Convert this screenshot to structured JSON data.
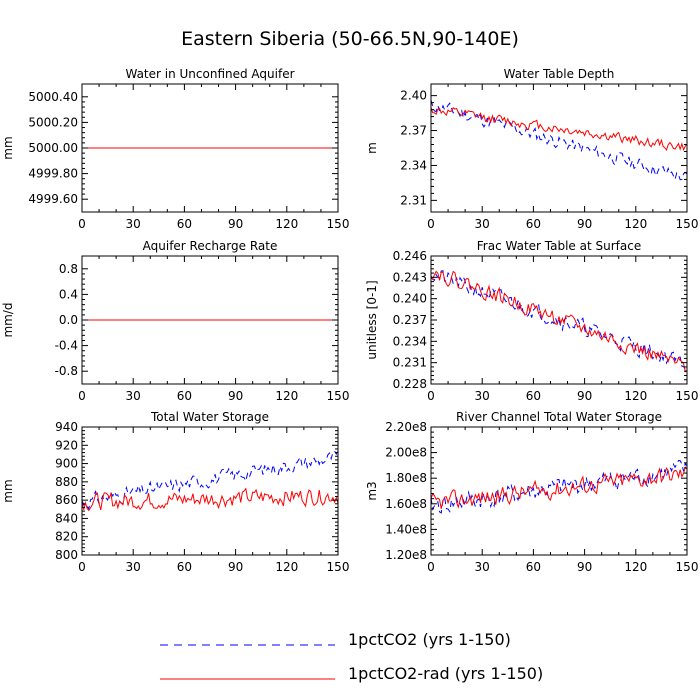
{
  "figure": {
    "title": "Eastern Siberia (50-66.5N,90-140E)"
  },
  "legend": [
    {
      "label": "1pctCO2 (yrs 1-150)",
      "color": "#0000ff",
      "dash": "dashed"
    },
    {
      "label": "1pctCO2-rad (yrs 1-150)",
      "color": "#ff0000",
      "dash": "solid"
    }
  ],
  "chart_data": [
    {
      "type": "line",
      "title": "Water in Unconfined Aquifer",
      "ylabel": "mm",
      "xlim": [
        0,
        150
      ],
      "ylim": [
        4999.5,
        5000.5
      ],
      "xticks": [
        0,
        30,
        60,
        90,
        120,
        150
      ],
      "yticks": [
        4999.6,
        4999.8,
        5000.0,
        5000.2,
        5000.4
      ],
      "ytick_labels": [
        "4999.60",
        "4999.80",
        "5000.00",
        "5000.20",
        "5000.40"
      ],
      "series": [
        {
          "name": "1pctCO2 (yrs 1-150)",
          "pattern": "flat",
          "base": 5000.0,
          "amp": 0,
          "trend": 0,
          "seed": 1
        },
        {
          "name": "1pctCO2-rad (yrs 1-150)",
          "pattern": "flat",
          "base": 5000.0,
          "amp": 0,
          "trend": 0,
          "seed": 2
        }
      ]
    },
    {
      "type": "line",
      "title": "Water Table Depth",
      "ylabel": "m",
      "xlim": [
        0,
        150
      ],
      "ylim": [
        2.3,
        2.41
      ],
      "xticks": [
        0,
        30,
        60,
        90,
        120,
        150
      ],
      "yticks": [
        2.31,
        2.34,
        2.37,
        2.4
      ],
      "ytick_labels": [
        "2.31",
        "2.34",
        "2.37",
        "2.40"
      ],
      "series": [
        {
          "name": "1pctCO2 (yrs 1-150)",
          "pattern": "noise",
          "base": 2.392,
          "amp": 0.008,
          "trend": -0.00042,
          "seed": 11
        },
        {
          "name": "1pctCO2-rad (yrs 1-150)",
          "pattern": "noise",
          "base": 2.388,
          "amp": 0.006,
          "trend": -0.00022,
          "seed": 12
        }
      ]
    },
    {
      "type": "line",
      "title": "Aquifer Recharge Rate",
      "ylabel": "mm/d",
      "xlim": [
        0,
        150
      ],
      "ylim": [
        -1.0,
        1.0
      ],
      "xticks": [
        0,
        30,
        60,
        90,
        120,
        150
      ],
      "yticks": [
        -0.8,
        -0.4,
        0.0,
        0.4,
        0.8
      ],
      "ytick_labels": [
        "-0.8",
        "-0.4",
        "0.0",
        "0.4",
        "0.8"
      ],
      "series": [
        {
          "name": "1pctCO2 (yrs 1-150)",
          "pattern": "flat",
          "base": 0.0,
          "amp": 0,
          "trend": 0,
          "seed": 3
        },
        {
          "name": "1pctCO2-rad (yrs 1-150)",
          "pattern": "flat",
          "base": 0.0,
          "amp": 0,
          "trend": 0,
          "seed": 4
        }
      ]
    },
    {
      "type": "line",
      "title": "Frac Water Table at Surface",
      "ylabel": "unitless [0-1]",
      "xlim": [
        0,
        150
      ],
      "ylim": [
        0.228,
        0.246
      ],
      "xticks": [
        0,
        30,
        60,
        90,
        120,
        150
      ],
      "yticks": [
        0.228,
        0.231,
        0.234,
        0.237,
        0.24,
        0.243,
        0.246
      ],
      "ytick_labels": [
        "0.228",
        "0.231",
        "0.234",
        "0.237",
        "0.240",
        "0.243",
        "0.246"
      ],
      "series": [
        {
          "name": "1pctCO2 (yrs 1-150)",
          "pattern": "noise",
          "base": 0.2435,
          "amp": 0.0016,
          "trend": -8.5e-05,
          "seed": 21
        },
        {
          "name": "1pctCO2-rad (yrs 1-150)",
          "pattern": "noise",
          "base": 0.244,
          "amp": 0.0015,
          "trend": -9.2e-05,
          "seed": 22
        }
      ]
    },
    {
      "type": "line",
      "title": "Total Water Storage",
      "ylabel": "mm",
      "xlim": [
        0,
        150
      ],
      "ylim": [
        800,
        940
      ],
      "xticks": [
        0,
        30,
        60,
        90,
        120,
        150
      ],
      "yticks": [
        800,
        820,
        840,
        860,
        880,
        900,
        920,
        940
      ],
      "ytick_labels": [
        "800",
        "820",
        "840",
        "860",
        "880",
        "900",
        "920",
        "940"
      ],
      "series": [
        {
          "name": "1pctCO2 (yrs 1-150)",
          "pattern": "noise",
          "base": 858,
          "amp": 11,
          "trend": 0.33,
          "seed": 31
        },
        {
          "name": "1pctCO2-rad (yrs 1-150)",
          "pattern": "noise",
          "base": 858,
          "amp": 13,
          "trend": 0.05,
          "seed": 32
        }
      ]
    },
    {
      "type": "line",
      "title": "River Channel Total Water Storage",
      "ylabel": "m3",
      "xlim": [
        0,
        150
      ],
      "ylim": [
        120000000,
        220000000
      ],
      "xticks": [
        0,
        30,
        60,
        90,
        120,
        150
      ],
      "yticks": [
        120000000,
        140000000,
        160000000,
        180000000,
        200000000,
        220000000
      ],
      "ytick_labels": [
        "1.20e8",
        "1.40e8",
        "1.60e8",
        "1.80e8",
        "2.00e8",
        "2.20e8"
      ],
      "series": [
        {
          "name": "1pctCO2 (yrs 1-150)",
          "pattern": "noise",
          "base": 158000000,
          "amp": 11000000,
          "trend": 190000,
          "seed": 41
        },
        {
          "name": "1pctCO2-rad (yrs 1-150)",
          "pattern": "noise",
          "base": 160000000,
          "amp": 10000000,
          "trend": 160000,
          "seed": 42
        }
      ]
    }
  ]
}
